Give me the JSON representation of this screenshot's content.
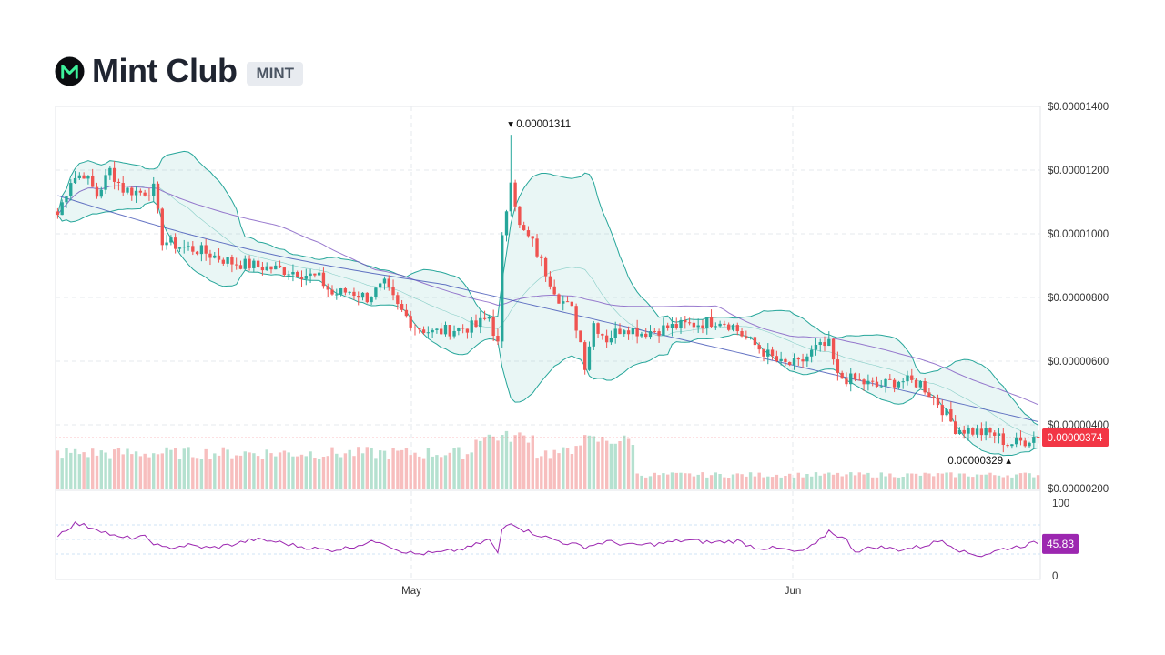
{
  "header": {
    "title": "Mint Club",
    "ticker": "MINT",
    "logo_icon": "mint-club-logo-icon"
  },
  "chart_data": {
    "type": "candlestick",
    "price_axis": {
      "ticks": [
        "$0.00001400",
        "$0.00001200",
        "$0.00001000",
        "$0.00000800",
        "$0.00000600",
        "$0.00000400",
        "$0.00000200"
      ],
      "ylim": [
        2e-06,
        1.4e-05
      ]
    },
    "x_axis": {
      "ticks": [
        "May",
        "Jun"
      ]
    },
    "last_price_label": "0.00000374",
    "high_label": "0.00001311",
    "low_label": "0.00000329",
    "price_anchors": [
      [
        0,
        1.06e-05
      ],
      [
        3,
        1.17e-05
      ],
      [
        6,
        1.19e-05
      ],
      [
        9,
        1.12e-05
      ],
      [
        12,
        1.2e-05
      ],
      [
        15,
        1.14e-05
      ],
      [
        19,
        1.13e-05
      ],
      [
        22,
        1.14e-05
      ],
      [
        24,
        9.8e-06
      ],
      [
        28,
        9.6e-06
      ],
      [
        32,
        9.5e-06
      ],
      [
        36,
        9.3e-06
      ],
      [
        40,
        9.1e-06
      ],
      [
        45,
        9e-06
      ],
      [
        50,
        8.9e-06
      ],
      [
        55,
        8.8e-06
      ],
      [
        60,
        8.6e-06
      ],
      [
        63,
        8.1e-06
      ],
      [
        67,
        8.2e-06
      ],
      [
        71,
        8e-06
      ],
      [
        75,
        8.4e-06
      ],
      [
        78,
        7.7e-06
      ],
      [
        82,
        7.1e-06
      ],
      [
        86,
        6.9e-06
      ],
      [
        91,
        7e-06
      ],
      [
        96,
        7.1e-06
      ],
      [
        99,
        7.4e-06
      ],
      [
        101,
        6.5e-06
      ],
      [
        102,
        9.8e-06
      ],
      [
        104,
        1.18e-05
      ],
      [
        106,
        1.02e-05
      ],
      [
        109,
        9.7e-06
      ],
      [
        112,
        8.8e-06
      ],
      [
        115,
        8e-06
      ],
      [
        118,
        7.6e-06
      ],
      [
        120,
        6.6e-06
      ],
      [
        121,
        5.9e-06
      ],
      [
        123,
        7.2e-06
      ],
      [
        126,
        6.7e-06
      ],
      [
        130,
        7.1e-06
      ],
      [
        134,
        6.9e-06
      ],
      [
        138,
        7e-06
      ],
      [
        142,
        7.1e-06
      ],
      [
        148,
        7.2e-06
      ],
      [
        152,
        7.3e-06
      ],
      [
        155,
        7.1e-06
      ],
      [
        158,
        6.7e-06
      ],
      [
        162,
        6.3e-06
      ],
      [
        166,
        5.9e-06
      ],
      [
        170,
        5.9e-06
      ],
      [
        174,
        6.4e-06
      ],
      [
        177,
        6.5e-06
      ],
      [
        179,
        5.5e-06
      ],
      [
        183,
        5.4e-06
      ],
      [
        188,
        5.2e-06
      ],
      [
        193,
        5.4e-06
      ],
      [
        198,
        5.3e-06
      ],
      [
        202,
        4.7e-06
      ],
      [
        206,
        3.9e-06
      ],
      [
        210,
        3.8e-06
      ],
      [
        215,
        3.7e-06
      ],
      [
        218,
        3.4e-06
      ],
      [
        222,
        3.5e-06
      ],
      [
        225,
        3.7e-06
      ]
    ],
    "rsi": {
      "ticks": [
        "100",
        "0"
      ],
      "ylim": [
        0,
        100
      ],
      "last_value_label": "45.83",
      "anchors": [
        [
          0,
          56
        ],
        [
          4,
          72
        ],
        [
          9,
          65
        ],
        [
          14,
          52
        ],
        [
          20,
          53
        ],
        [
          24,
          38
        ],
        [
          30,
          42
        ],
        [
          35,
          38
        ],
        [
          40,
          43
        ],
        [
          45,
          50
        ],
        [
          50,
          47
        ],
        [
          55,
          41
        ],
        [
          62,
          35
        ],
        [
          66,
          38
        ],
        [
          70,
          44
        ],
        [
          74,
          48
        ],
        [
          78,
          36
        ],
        [
          82,
          30
        ],
        [
          88,
          32
        ],
        [
          94,
          38
        ],
        [
          99,
          50
        ],
        [
          101,
          30
        ],
        [
          102,
          64
        ],
        [
          104,
          74
        ],
        [
          107,
          63
        ],
        [
          111,
          55
        ],
        [
          116,
          46
        ],
        [
          121,
          40
        ],
        [
          126,
          47
        ],
        [
          132,
          42
        ],
        [
          138,
          44
        ],
        [
          144,
          49
        ],
        [
          150,
          46
        ],
        [
          156,
          48
        ],
        [
          160,
          39
        ],
        [
          166,
          37
        ],
        [
          170,
          32
        ],
        [
          174,
          43
        ],
        [
          177,
          62
        ],
        [
          181,
          49
        ],
        [
          183,
          34
        ],
        [
          188,
          40
        ],
        [
          193,
          36
        ],
        [
          198,
          40
        ],
        [
          203,
          49
        ],
        [
          208,
          32
        ],
        [
          212,
          28
        ],
        [
          217,
          37
        ],
        [
          221,
          41
        ],
        [
          225,
          46
        ]
      ]
    },
    "colors": {
      "up": "#26a69a",
      "down": "#ef5350",
      "band": "#26a69a",
      "ma": "#7e57c2",
      "long_ma": "#3f51b5",
      "rsi_line": "#9c27b0",
      "last_price_bg": "#f23645",
      "rsi_label_bg": "#9c27b0"
    }
  }
}
